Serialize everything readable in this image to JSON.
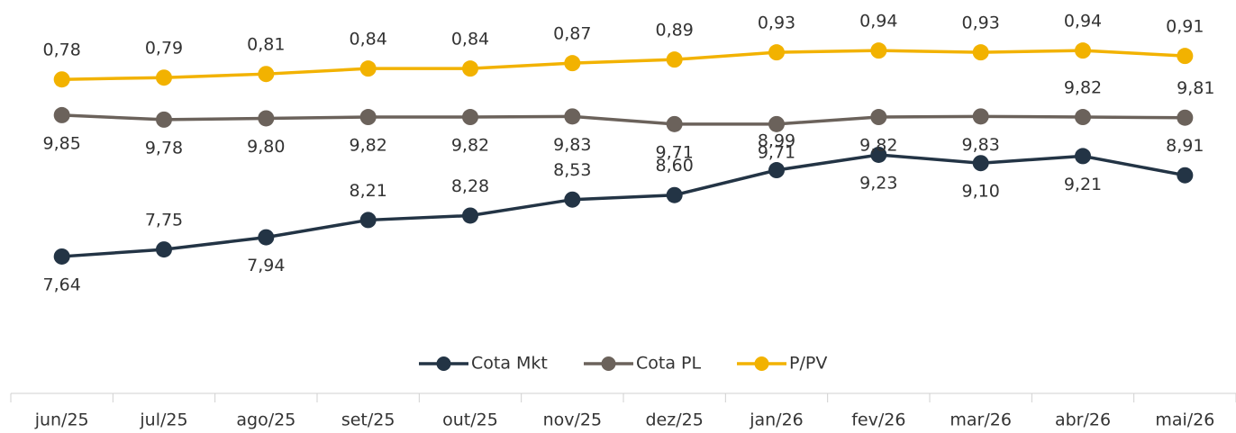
{
  "chart_data": {
    "type": "line",
    "categories": [
      "jun/25",
      "jul/25",
      "ago/25",
      "set/25",
      "out/25",
      "nov/25",
      "dez/25",
      "jan/26",
      "fev/26",
      "mar/26",
      "abr/26",
      "mai/26"
    ],
    "ylim": [
      5.5,
      11.65
    ],
    "y2lim": [
      -0.96,
      1.22
    ],
    "legend": "bottom",
    "series": [
      {
        "name": "Cota Mkt",
        "color": "#233445",
        "values": [
          7.64,
          7.75,
          7.94,
          8.21,
          8.28,
          8.53,
          8.6,
          8.99,
          9.23,
          9.1,
          9.21,
          8.91
        ],
        "value_labels": [
          "7,64",
          "7,75",
          "7,94",
          "8,21",
          "8,28",
          "8,53",
          "8,60",
          "8,99",
          "9,23",
          "9,10",
          "9,21",
          "8,91"
        ]
      },
      {
        "name": "Cota PL",
        "color": "#6b625b",
        "values": [
          9.85,
          9.78,
          9.8,
          9.82,
          9.82,
          9.83,
          9.71,
          9.71,
          9.82,
          9.83,
          9.82,
          9.81
        ],
        "value_labels": [
          "9,85",
          "9,78",
          "9,80",
          "9,82",
          "9,82",
          "9,83",
          "9,71",
          "9,71",
          "9,82",
          "9,83",
          "9,82",
          "9,81"
        ]
      },
      {
        "name": "P/PV",
        "color": "#f2b200",
        "axis": "y2",
        "values": [
          0.78,
          0.79,
          0.81,
          0.84,
          0.84,
          0.87,
          0.89,
          0.93,
          0.94,
          0.93,
          0.94,
          0.91
        ],
        "value_labels": [
          "0,78",
          "0,79",
          "0,81",
          "0,84",
          "0,84",
          "0,87",
          "0,89",
          "0,93",
          "0,94",
          "0,93",
          "0,94",
          "0,91"
        ]
      }
    ]
  }
}
